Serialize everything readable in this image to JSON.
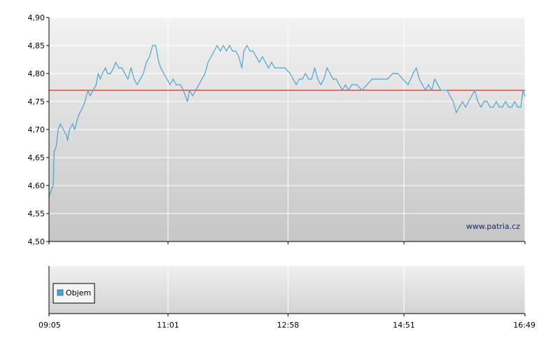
{
  "chart_data": [
    {
      "type": "line",
      "title": "",
      "xlabel": "",
      "ylabel": "",
      "ylim": [
        4.5,
        4.9
      ],
      "y_ticks": [
        "4,50",
        "4,55",
        "4,60",
        "4,65",
        "4,70",
        "4,75",
        "4,80",
        "4,85",
        "4,90"
      ],
      "y_tick_values": [
        4.5,
        4.55,
        4.6,
        4.65,
        4.7,
        4.75,
        4.8,
        4.85,
        4.9
      ],
      "x_ticks": [
        "09:05",
        "11:01",
        "12:58",
        "14:51",
        "16:49"
      ],
      "x_tick_minutes": [
        "09:05",
        "11:01",
        "12:58",
        "14:51",
        "16:49"
      ],
      "grid": true,
      "reference_line": {
        "value": 4.77,
        "color": "#cc0000"
      },
      "series": [
        {
          "color": "#4aa3d0",
          "points": [
            [
              "09:05",
              4.58
            ],
            [
              "09:07",
              4.59
            ],
            [
              "09:09",
              4.6
            ],
            [
              "09:10",
              4.66
            ],
            [
              "09:12",
              4.67
            ],
            [
              "09:14",
              4.7
            ],
            [
              "09:16",
              4.71
            ],
            [
              "09:19",
              4.7
            ],
            [
              "09:22",
              4.69
            ],
            [
              "09:23",
              4.68
            ],
            [
              "09:25",
              4.7
            ],
            [
              "09:28",
              4.71
            ],
            [
              "09:30",
              4.7
            ],
            [
              "09:33",
              4.72
            ],
            [
              "09:35",
              4.73
            ],
            [
              "09:38",
              4.74
            ],
            [
              "09:40",
              4.75
            ],
            [
              "09:43",
              4.77
            ],
            [
              "09:45",
              4.76
            ],
            [
              "09:48",
              4.77
            ],
            [
              "09:51",
              4.78
            ],
            [
              "09:53",
              4.8
            ],
            [
              "09:55",
              4.79
            ],
            [
              "09:57",
              4.8
            ],
            [
              "10:00",
              4.81
            ],
            [
              "10:02",
              4.8
            ],
            [
              "10:05",
              4.8
            ],
            [
              "10:08",
              4.81
            ],
            [
              "10:10",
              4.82
            ],
            [
              "10:13",
              4.81
            ],
            [
              "10:16",
              4.81
            ],
            [
              "10:19",
              4.8
            ],
            [
              "10:22",
              4.79
            ],
            [
              "10:25",
              4.81
            ],
            [
              "10:28",
              4.79
            ],
            [
              "10:31",
              4.78
            ],
            [
              "10:34",
              4.79
            ],
            [
              "10:37",
              4.8
            ],
            [
              "10:40",
              4.82
            ],
            [
              "10:43",
              4.83
            ],
            [
              "10:46",
              4.85
            ],
            [
              "10:49",
              4.85
            ],
            [
              "10:52",
              4.82
            ],
            [
              "10:54",
              4.81
            ],
            [
              "10:57",
              4.8
            ],
            [
              "11:00",
              4.79
            ],
            [
              "11:03",
              4.78
            ],
            [
              "11:06",
              4.79
            ],
            [
              "11:09",
              4.78
            ],
            [
              "11:13",
              4.78
            ],
            [
              "11:16",
              4.77
            ],
            [
              "11:18",
              4.76
            ],
            [
              "11:20",
              4.75
            ],
            [
              "11:22",
              4.77
            ],
            [
              "11:25",
              4.76
            ],
            [
              "11:28",
              4.77
            ],
            [
              "11:31",
              4.78
            ],
            [
              "11:34",
              4.79
            ],
            [
              "11:37",
              4.8
            ],
            [
              "11:40",
              4.82
            ],
            [
              "11:43",
              4.83
            ],
            [
              "11:46",
              4.84
            ],
            [
              "11:49",
              4.85
            ],
            [
              "11:52",
              4.84
            ],
            [
              "11:55",
              4.85
            ],
            [
              "11:58",
              4.84
            ],
            [
              "12:01",
              4.85
            ],
            [
              "12:04",
              4.84
            ],
            [
              "12:07",
              4.84
            ],
            [
              "12:10",
              4.83
            ],
            [
              "12:13",
              4.81
            ],
            [
              "12:15",
              4.84
            ],
            [
              "12:18",
              4.85
            ],
            [
              "12:21",
              4.84
            ],
            [
              "12:24",
              4.84
            ],
            [
              "12:27",
              4.83
            ],
            [
              "12:30",
              4.82
            ],
            [
              "12:33",
              4.83
            ],
            [
              "12:36",
              4.82
            ],
            [
              "12:39",
              4.81
            ],
            [
              "12:42",
              4.82
            ],
            [
              "12:45",
              4.81
            ],
            [
              "12:50",
              4.81
            ],
            [
              "12:55",
              4.81
            ],
            [
              "13:00",
              4.8
            ],
            [
              "13:03",
              4.79
            ],
            [
              "13:06",
              4.78
            ],
            [
              "13:09",
              4.79
            ],
            [
              "13:12",
              4.79
            ],
            [
              "13:15",
              4.8
            ],
            [
              "13:18",
              4.79
            ],
            [
              "13:21",
              4.79
            ],
            [
              "13:24",
              4.81
            ],
            [
              "13:27",
              4.79
            ],
            [
              "13:30",
              4.78
            ],
            [
              "13:33",
              4.79
            ],
            [
              "13:36",
              4.81
            ],
            [
              "13:39",
              4.8
            ],
            [
              "13:42",
              4.79
            ],
            [
              "13:45",
              4.79
            ],
            [
              "13:48",
              4.78
            ],
            [
              "13:51",
              4.77
            ],
            [
              "13:54",
              4.78
            ],
            [
              "13:57",
              4.77
            ],
            [
              "14:00",
              4.78
            ],
            [
              "14:05",
              4.78
            ],
            [
              "14:10",
              4.77
            ],
            [
              "14:15",
              4.78
            ],
            [
              "14:20",
              4.79
            ],
            [
              "14:25",
              4.79
            ],
            [
              "14:30",
              4.79
            ],
            [
              "14:35",
              4.79
            ],
            [
              "14:40",
              4.8
            ],
            [
              "14:45",
              4.8
            ],
            [
              "14:50",
              4.79
            ],
            [
              "14:55",
              4.78
            ],
            [
              "15:00",
              4.8
            ],
            [
              "15:03",
              4.81
            ],
            [
              "15:06",
              4.79
            ],
            [
              "15:09",
              4.78
            ],
            [
              "15:12",
              4.77
            ],
            [
              "15:15",
              4.78
            ],
            [
              "15:18",
              4.77
            ],
            [
              "15:21",
              4.79
            ],
            [
              "15:24",
              4.78
            ],
            [
              "15:27",
              4.77
            ],
            [
              "15:30",
              4.77
            ],
            [
              "15:33",
              4.77
            ],
            [
              "15:36",
              4.76
            ],
            [
              "15:39",
              4.75
            ],
            [
              "15:42",
              4.73
            ],
            [
              "15:45",
              4.74
            ],
            [
              "15:48",
              4.75
            ],
            [
              "15:51",
              4.74
            ],
            [
              "15:54",
              4.75
            ],
            [
              "15:57",
              4.76
            ],
            [
              "16:00",
              4.77
            ],
            [
              "16:03",
              4.75
            ],
            [
              "16:06",
              4.74
            ],
            [
              "16:09",
              4.75
            ],
            [
              "16:12",
              4.75
            ],
            [
              "16:15",
              4.74
            ],
            [
              "16:18",
              4.74
            ],
            [
              "16:21",
              4.75
            ],
            [
              "16:24",
              4.74
            ],
            [
              "16:27",
              4.74
            ],
            [
              "16:30",
              4.75
            ],
            [
              "16:33",
              4.74
            ],
            [
              "16:36",
              4.74
            ],
            [
              "16:39",
              4.75
            ],
            [
              "16:42",
              4.74
            ],
            [
              "16:45",
              4.74
            ],
            [
              "16:47",
              4.77
            ],
            [
              "16:49",
              4.76
            ]
          ]
        }
      ]
    },
    {
      "type": "bar",
      "title": "",
      "x_ticks": [
        "09:05",
        "11:01",
        "12:58",
        "14:51",
        "16:49"
      ],
      "grid": true,
      "legend": {
        "position": "bottom-left",
        "entries": [
          {
            "name": "Objem",
            "color": "#4aa3d0"
          }
        ]
      },
      "series": [
        {
          "name": "Objem",
          "values": []
        }
      ]
    }
  ],
  "watermark": "www.patria.cz",
  "colors": {
    "price_line": "#4aa3d0",
    "reference_line": "#cc0000",
    "grid": "#ffffff",
    "axis": "#000000",
    "plot_bg_top": "#f2f2f2",
    "plot_bg_bottom": "#c4c4c4"
  }
}
